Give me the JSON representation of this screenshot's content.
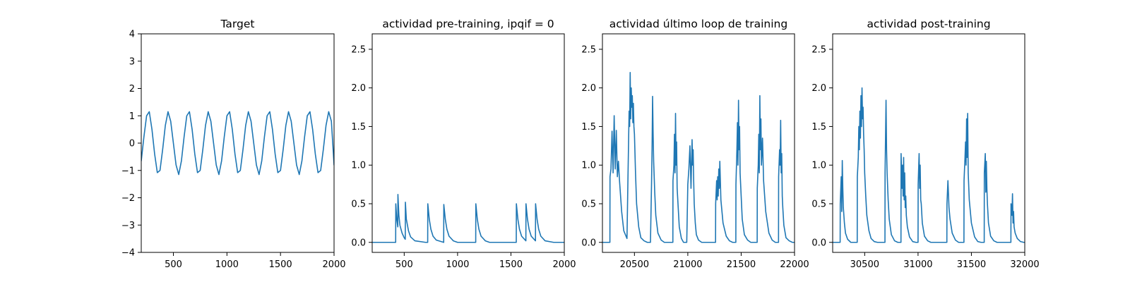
{
  "figure": {
    "background": "#ffffff",
    "line_color": "#1f77b4"
  },
  "chart_data": [
    {
      "type": "line",
      "title": "Target",
      "xlabel": "",
      "ylabel": "",
      "xlim": [
        200,
        2000
      ],
      "ylim": [
        -4,
        4
      ],
      "xticks": [
        500,
        1000,
        1500,
        2000
      ],
      "yticks": [
        -4,
        -3,
        -2,
        -1,
        0,
        1,
        2,
        3,
        4
      ],
      "grid": false,
      "series": [
        {
          "x": [
            200,
            225,
            250,
            275,
            300,
            325,
            350,
            375,
            400,
            425,
            450,
            475,
            500,
            525,
            550,
            575,
            600,
            625,
            650,
            675,
            700,
            725,
            750,
            775,
            800,
            825,
            850,
            875,
            900,
            925,
            950,
            975,
            1000,
            1025,
            1050,
            1075,
            1100,
            1125,
            1150,
            1175,
            1200,
            1225,
            1250,
            1275,
            1300,
            1325,
            1350,
            1375,
            1400,
            1425,
            1450,
            1475,
            1500,
            1525,
            1550,
            1575,
            1600,
            1625,
            1650,
            1675,
            1700,
            1725,
            1750,
            1775,
            1800,
            1825,
            1850,
            1875,
            1900,
            1925,
            1950,
            1975,
            2000
          ],
          "y": [
            -0.65,
            0.23,
            1.0,
            1.15,
            0.5,
            -0.4,
            -1.08,
            -1.0,
            -0.23,
            0.65,
            1.15,
            0.8,
            0.0,
            -0.8,
            -1.15,
            -0.65,
            0.23,
            1.0,
            1.15,
            0.5,
            -0.4,
            -1.08,
            -1.0,
            -0.23,
            0.65,
            1.15,
            0.8,
            0.0,
            -0.8,
            -1.15,
            -0.65,
            0.23,
            1.0,
            1.15,
            0.5,
            -0.4,
            -1.08,
            -1.0,
            -0.23,
            0.65,
            1.15,
            0.8,
            0.0,
            -0.8,
            -1.15,
            -0.65,
            0.23,
            1.0,
            1.15,
            0.5,
            -0.4,
            -1.08,
            -1.0,
            -0.23,
            0.65,
            1.15,
            0.8,
            0.0,
            -0.8,
            -1.15,
            -0.65,
            0.23,
            1.0,
            1.15,
            0.5,
            -0.4,
            -1.08,
            -1.0,
            -0.23,
            0.65,
            1.15,
            0.8,
            -0.8
          ]
        }
      ]
    },
    {
      "type": "line",
      "title": "actividad pre-training, ipqif = 0",
      "xlabel": "",
      "ylabel": "",
      "xlim": [
        200,
        2000
      ],
      "ylim": [
        -0.13,
        2.7
      ],
      "xticks": [
        500,
        1000,
        1500,
        2000
      ],
      "yticks": [
        0.0,
        0.5,
        1.0,
        1.5,
        2.0,
        2.5
      ],
      "grid": false,
      "series": [
        {
          "x": [
            200,
            420,
            421,
            430,
            440,
            441,
            450,
            460,
            480,
            500,
            510,
            511,
            520,
            540,
            560,
            600,
            700,
            720,
            721,
            735,
            750,
            770,
            800,
            870,
            871,
            885,
            900,
            920,
            960,
            1000,
            1170,
            1171,
            1185,
            1200,
            1220,
            1260,
            1300,
            1550,
            1551,
            1565,
            1580,
            1600,
            1640,
            1641,
            1655,
            1670,
            1690,
            1730,
            1731,
            1745,
            1760,
            1780,
            1820,
            1900,
            2000
          ],
          "y": [
            0,
            0,
            0.5,
            0.3,
            0.2,
            0.62,
            0.35,
            0.22,
            0.12,
            0.06,
            0.04,
            0.52,
            0.3,
            0.15,
            0.07,
            0.02,
            0.0,
            0.0,
            0.5,
            0.3,
            0.17,
            0.08,
            0.03,
            0.0,
            0.49,
            0.3,
            0.17,
            0.08,
            0.02,
            0.0,
            0.0,
            0.5,
            0.3,
            0.17,
            0.08,
            0.02,
            0.0,
            0.0,
            0.5,
            0.3,
            0.17,
            0.08,
            0.02,
            0.5,
            0.3,
            0.17,
            0.08,
            0.02,
            0.5,
            0.3,
            0.17,
            0.08,
            0.02,
            0.0,
            0.0
          ]
        }
      ]
    },
    {
      "type": "line",
      "title": "actividad último loop de training",
      "xlabel": "",
      "ylabel": "",
      "xlim": [
        20200,
        22000
      ],
      "ylim": [
        -0.13,
        2.7
      ],
      "xticks": [
        20500,
        21000,
        21500,
        22000
      ],
      "yticks": [
        0.0,
        0.5,
        1.0,
        1.5,
        2.0,
        2.5
      ],
      "grid": false,
      "series": [
        {
          "x": [
            20200,
            20270,
            20271,
            20280,
            20290,
            20300,
            20310,
            20320,
            20330,
            20340,
            20350,
            20360,
            20380,
            20400,
            20430,
            20440,
            20445,
            20450,
            20455,
            20460,
            20465,
            20470,
            20475,
            20480,
            20485,
            20490,
            20495,
            20500,
            20510,
            20520,
            20540,
            20560,
            20590,
            20620,
            20650,
            20660,
            20665,
            20670,
            20675,
            20680,
            20690,
            20700,
            20720,
            20750,
            20780,
            20800,
            20830,
            20860,
            20861,
            20870,
            20875,
            20880,
            20885,
            20890,
            20895,
            20900,
            20910,
            20920,
            20940,
            20960,
            20990,
            21000,
            21010,
            21020,
            21030,
            21040,
            21045,
            21050,
            21055,
            21060,
            21070,
            21080,
            21100,
            21130,
            21160,
            21200,
            21260,
            21261,
            21270,
            21275,
            21280,
            21285,
            21290,
            21295,
            21300,
            21310,
            21330,
            21360,
            21390,
            21420,
            21450,
            21451,
            21460,
            21465,
            21470,
            21475,
            21480,
            21485,
            21490,
            21500,
            21510,
            21530,
            21560,
            21590,
            21620,
            21650,
            21651,
            21660,
            21665,
            21670,
            21675,
            21680,
            21685,
            21690,
            21700,
            21710,
            21730,
            21760,
            21790,
            21820,
            21850,
            21851,
            21860,
            21865,
            21870,
            21875,
            21880,
            21885,
            21890,
            21900,
            21920,
            21950,
            21980,
            22000
          ],
          "y": [
            0,
            0,
            0.85,
            0.95,
            1.44,
            0.9,
            1.64,
            0.95,
            1.45,
            0.85,
            1.05,
            0.8,
            0.4,
            0.15,
            0.05,
            0.9,
            1.3,
            1.7,
            1.5,
            2.2,
            1.6,
            2.0,
            1.75,
            1.9,
            1.55,
            1.8,
            1.5,
            1.4,
            0.9,
            0.5,
            0.2,
            0.06,
            0.02,
            0.0,
            0.0,
            0.75,
            1.2,
            1.89,
            1.4,
            1.05,
            0.65,
            0.35,
            0.12,
            0.03,
            0.0,
            0.0,
            0.0,
            0.0,
            0.8,
            1.0,
            1.4,
            0.9,
            1.67,
            1.0,
            1.3,
            0.7,
            0.45,
            0.2,
            0.05,
            0.0,
            0.0,
            0.75,
            0.95,
            1.25,
            0.7,
            1.33,
            1.0,
            1.2,
            0.8,
            0.5,
            0.25,
            0.1,
            0.03,
            0.0,
            0.0,
            0.0,
            0.0,
            0.5,
            0.8,
            0.55,
            0.85,
            0.6,
            0.95,
            0.7,
            1.05,
            0.55,
            0.25,
            0.08,
            0.02,
            0.0,
            0.0,
            0.75,
            1.2,
            1.55,
            1.0,
            1.84,
            1.2,
            1.5,
            0.9,
            0.6,
            0.3,
            0.1,
            0.03,
            0.0,
            0.0,
            0.0,
            0.7,
            1.0,
            1.4,
            0.9,
            1.9,
            1.2,
            1.6,
            1.0,
            1.35,
            0.8,
            0.4,
            0.12,
            0.03,
            0.0,
            0.0,
            0.85,
            1.2,
            1.0,
            1.58,
            0.9,
            1.15,
            0.6,
            0.45,
            0.22,
            0.06,
            0.02,
            0.0,
            0.0
          ]
        }
      ]
    },
    {
      "type": "line",
      "title": "actividad post-training",
      "xlabel": "",
      "ylabel": "",
      "xlim": [
        30200,
        32000
      ],
      "ylim": [
        -0.13,
        2.7
      ],
      "xticks": [
        30500,
        31000,
        31500,
        32000
      ],
      "yticks": [
        0.0,
        0.5,
        1.0,
        1.5,
        2.0,
        2.5
      ],
      "grid": false,
      "series": [
        {
          "x": [
            30200,
            30270,
            30271,
            30280,
            30285,
            30290,
            30295,
            30300,
            30310,
            30320,
            30340,
            30370,
            30400,
            30430,
            30431,
            30440,
            30445,
            30450,
            30455,
            30460,
            30465,
            30470,
            30475,
            30480,
            30485,
            30490,
            30495,
            30500,
            30510,
            30520,
            30540,
            30560,
            30590,
            30620,
            30660,
            30690,
            30691,
            30700,
            30705,
            30710,
            30720,
            30730,
            30750,
            30780,
            30810,
            30840,
            30841,
            30850,
            30855,
            30860,
            30865,
            30870,
            30875,
            30880,
            30885,
            30890,
            30900,
            30920,
            30950,
            30980,
            31000,
            31001,
            31010,
            31015,
            31020,
            31025,
            31030,
            31040,
            31060,
            31090,
            31120,
            31150,
            31180,
            31200,
            31250,
            31270,
            31271,
            31280,
            31290,
            31300,
            31320,
            31350,
            31380,
            31430,
            31431,
            31440,
            31445,
            31450,
            31455,
            31460,
            31465,
            31470,
            31480,
            31500,
            31530,
            31560,
            31590,
            31620,
            31621,
            31630,
            31635,
            31640,
            31645,
            31650,
            31660,
            31680,
            31710,
            31740,
            31780,
            31800,
            31840,
            31870,
            31871,
            31880,
            31885,
            31890,
            31895,
            31900,
            31910,
            31930,
            31960,
            31990,
            32000
          ],
          "y": [
            0,
            0,
            0.5,
            0.85,
            0.4,
            1.06,
            0.7,
            0.45,
            0.25,
            0.12,
            0.04,
            0.0,
            0.0,
            0.0,
            0.85,
            1.1,
            1.5,
            1.2,
            1.7,
            1.35,
            1.9,
            1.5,
            2.0,
            1.6,
            1.75,
            1.4,
            1.2,
            0.9,
            0.6,
            0.35,
            0.15,
            0.05,
            0.01,
            0.0,
            0.0,
            0.0,
            0.9,
            1.84,
            1.2,
            0.9,
            0.55,
            0.3,
            0.1,
            0.02,
            0.0,
            0.0,
            1.15,
            0.7,
            1.0,
            0.6,
            1.1,
            0.55,
            0.9,
            0.45,
            0.6,
            0.35,
            0.2,
            0.07,
            0.01,
            0.0,
            0.0,
            0.75,
            1.15,
            0.7,
            1.0,
            0.55,
            0.5,
            0.25,
            0.08,
            0.02,
            0.0,
            0.0,
            0.0,
            0.0,
            0.0,
            0.0,
            0.5,
            0.8,
            0.45,
            0.3,
            0.12,
            0.03,
            0.0,
            0.0,
            0.8,
            1.1,
            1.3,
            1.0,
            1.6,
            1.1,
            1.67,
            0.9,
            0.55,
            0.25,
            0.07,
            0.01,
            0.0,
            0.0,
            0.9,
            1.15,
            0.65,
            1.05,
            0.7,
            0.5,
            0.25,
            0.08,
            0.02,
            0.0,
            0.0,
            0.0,
            0.0,
            0.0,
            0.5,
            0.35,
            0.63,
            0.25,
            0.4,
            0.2,
            0.12,
            0.05,
            0.01,
            0.0,
            0.0
          ]
        }
      ]
    }
  ]
}
